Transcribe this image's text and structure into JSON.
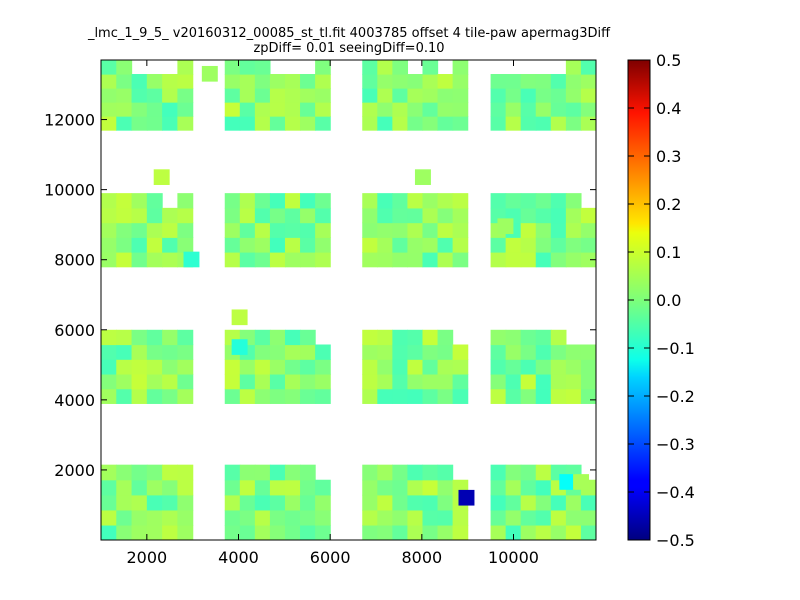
{
  "chart_data": {
    "type": "heatmap",
    "title_line1": "_lmc_1_9_5_ v20160312_00085_st_tl.fit 4003785 offset 4 tile-paw apermag3Diff",
    "title_line2": "zpDiff= 0.01 seeingDiff=0.10",
    "xlim": [
      1000,
      11800
    ],
    "ylim": [
      0,
      13700
    ],
    "xticks": [
      2000,
      4000,
      6000,
      8000,
      10000
    ],
    "yticks": [
      2000,
      4000,
      6000,
      8000,
      10000,
      12000
    ],
    "colorbar": {
      "colormap": "jet",
      "vmin": -0.5,
      "vmax": 0.5,
      "ticks": [
        "0.5",
        "0.4",
        "0.3",
        "0.2",
        "0.1",
        "0.0",
        "−0.1",
        "−0.2",
        "−0.3",
        "−0.4",
        "−0.5"
      ]
    },
    "cell_size": [
      335,
      430
    ],
    "detector_columns": [
      [
        1000,
        3000
      ],
      [
        3700,
        6000
      ],
      [
        6700,
        9000
      ],
      [
        9500,
        11800
      ]
    ],
    "detector_rows": [
      [
        0,
        2150
      ],
      [
        3900,
        6000
      ],
      [
        7800,
        9900
      ],
      [
        11700,
        13700
      ]
    ],
    "missing_cells": [
      [
        0,
        3,
        2
      ],
      [
        0,
        3,
        3
      ],
      [
        0,
        3,
        4
      ],
      [
        1,
        3,
        3
      ],
      [
        1,
        3,
        4
      ],
      [
        1,
        3,
        5
      ],
      [
        2,
        3,
        3
      ],
      [
        2,
        3,
        5
      ],
      [
        3,
        3,
        0
      ],
      [
        3,
        3,
        1
      ],
      [
        3,
        3,
        2
      ],
      [
        3,
        3,
        3
      ],
      [
        3,
        3,
        4
      ],
      [
        0,
        2,
        4
      ],
      [
        3,
        2,
        6
      ],
      [
        2,
        1,
        6
      ],
      [
        1,
        1,
        6
      ],
      [
        3,
        0,
        6
      ],
      [
        2,
        0,
        6
      ],
      [
        1,
        0,
        6
      ],
      [
        0,
        0,
        6
      ],
      [
        3,
        1,
        5
      ],
      [
        3,
        1,
        6
      ]
    ],
    "extra_cells": [
      {
        "x": 2150,
        "y": 10150,
        "value": 0.06
      },
      {
        "x": 3200,
        "y": 13100,
        "value": 0.03
      },
      {
        "x": 7850,
        "y": 10150,
        "value": 0.03
      },
      {
        "x": 9650,
        "y": 8750,
        "value": 0.03
      },
      {
        "x": 3850,
        "y": 6150,
        "value": 0.06
      }
    ],
    "special_cells": [
      {
        "x": 8800,
        "y": 1000,
        "value": -0.45
      },
      {
        "x": 11000,
        "y": 1450,
        "value": -0.12
      },
      {
        "x": 11300,
        "y": 1450,
        "value": 0.04
      },
      {
        "x": 2800,
        "y": 7800,
        "value": -0.08
      },
      {
        "x": 3850,
        "y": 5300,
        "value": -0.09
      }
    ],
    "value_range_typical": [
      -0.06,
      0.07
    ]
  }
}
